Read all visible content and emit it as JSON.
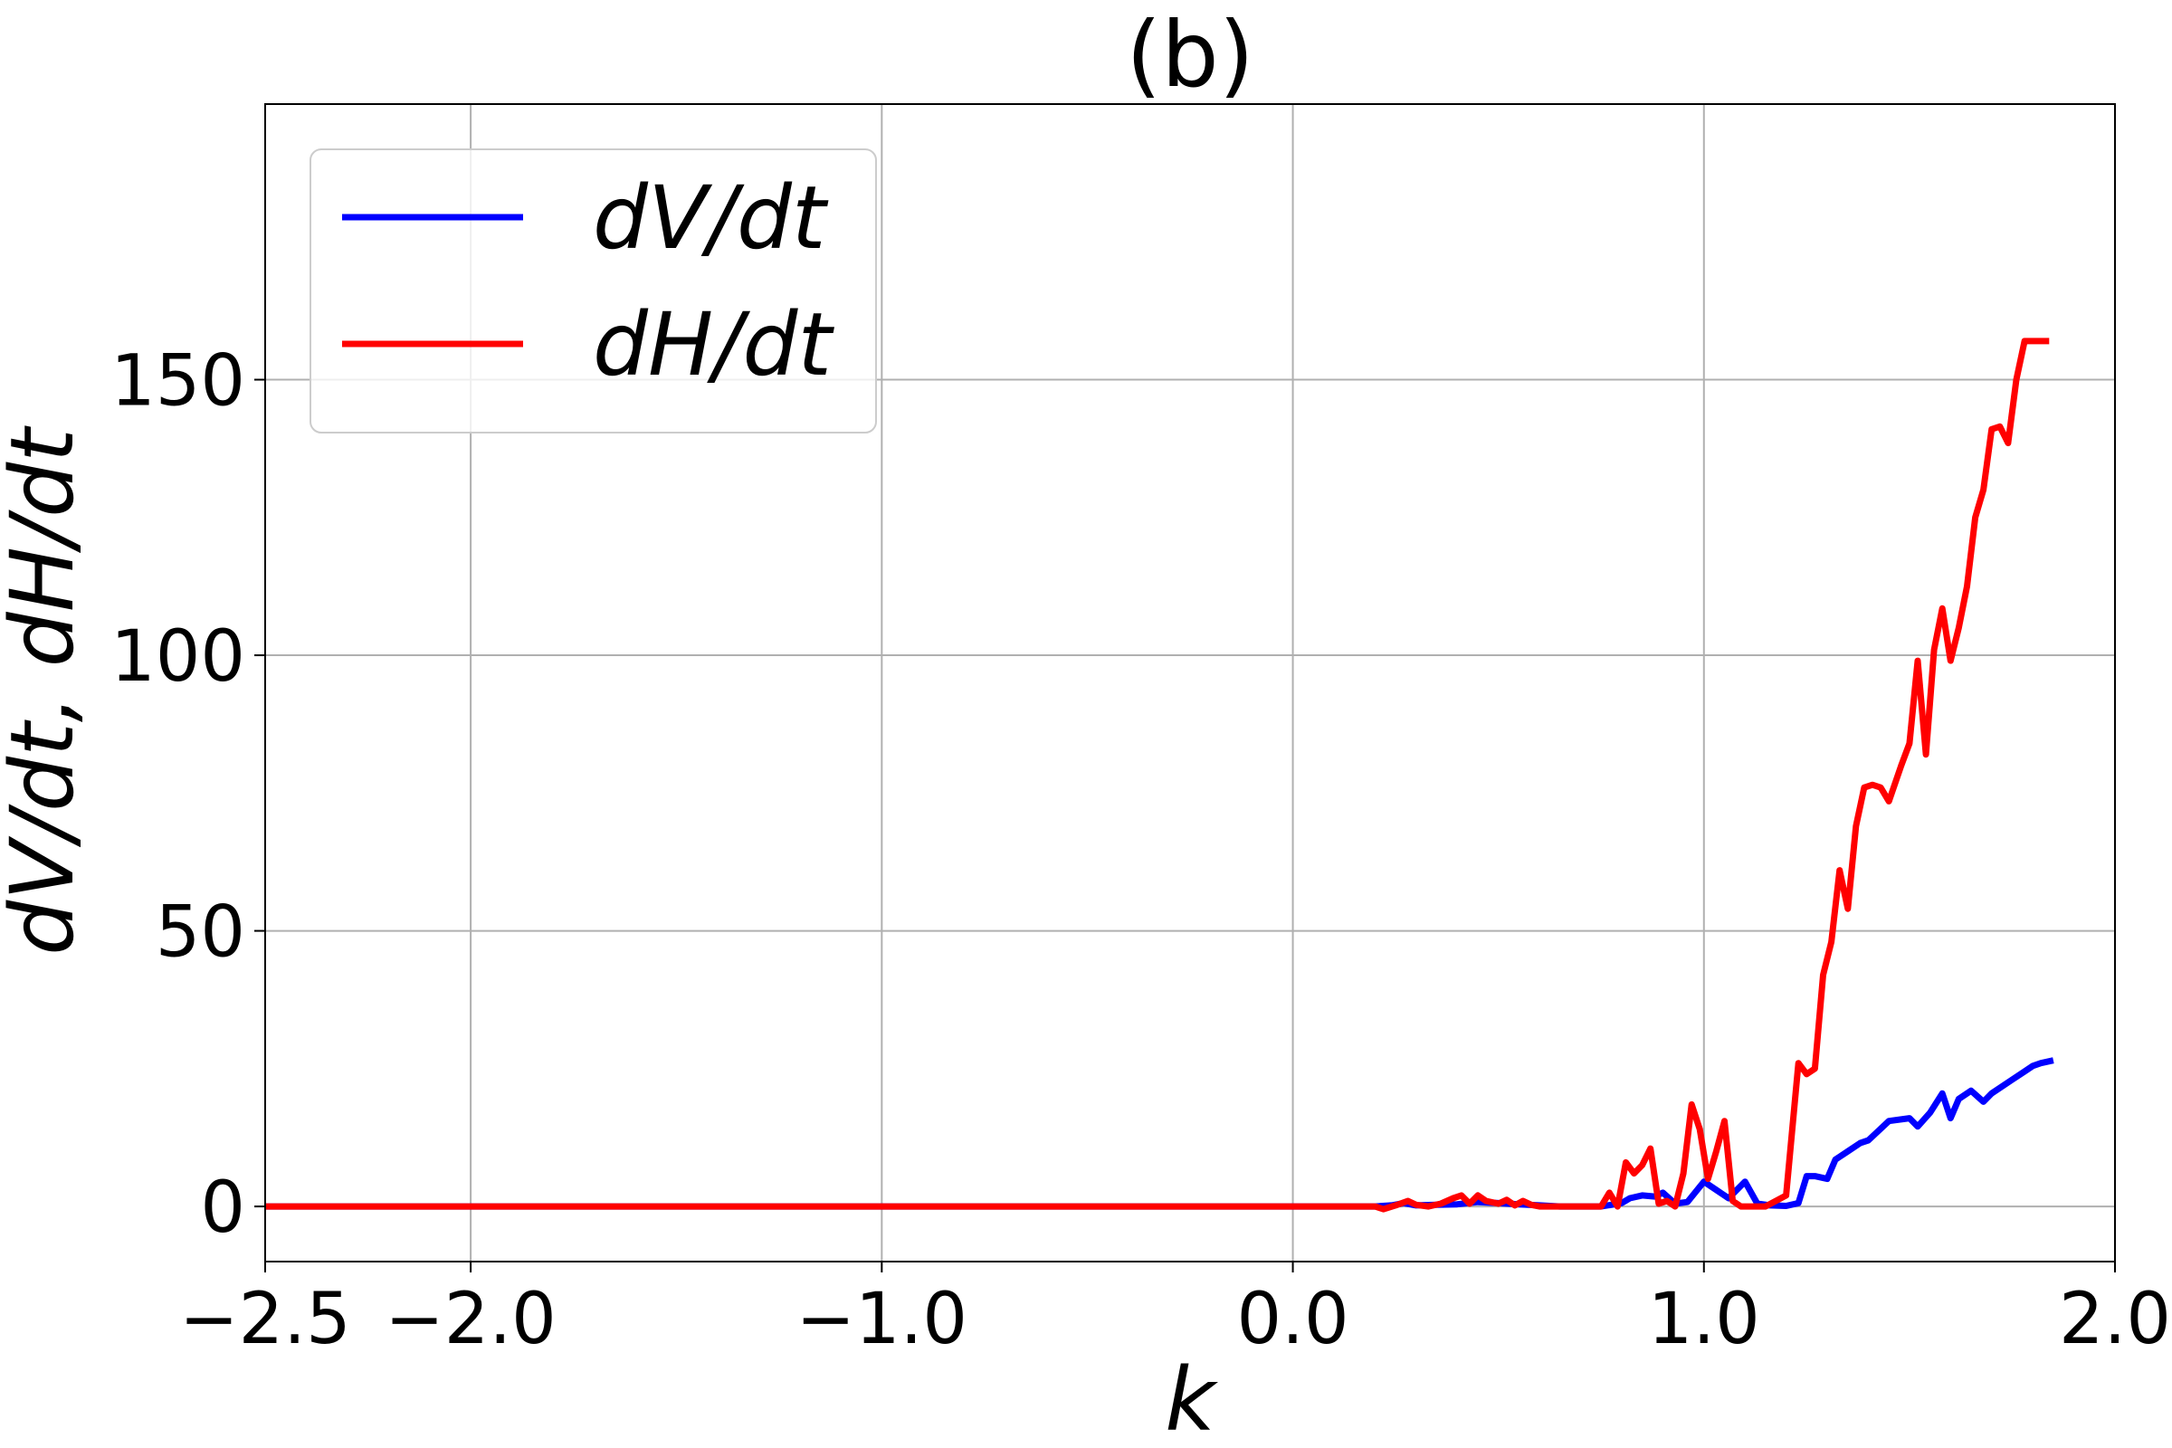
{
  "chart_data": {
    "type": "line",
    "title": "(b)",
    "xlabel": "k",
    "ylabel": "dV/dt, dH/dt",
    "xlim": [
      -2.5,
      2.0
    ],
    "ylim": [
      -10,
      200
    ],
    "xticks": [
      -2.5,
      -2.0,
      -1.0,
      0.0,
      1.0,
      2.0
    ],
    "xtick_labels": [
      "−2.5",
      "−2.0",
      "−1.0",
      "0.0",
      "1.0",
      "2.0"
    ],
    "yticks": [
      0,
      50,
      100,
      150
    ],
    "ytick_labels": [
      "0",
      "50",
      "100",
      "150"
    ],
    "grid": true,
    "legend_position": "top-left",
    "series": [
      {
        "name": "dV/dt",
        "color": "#0000ff",
        "x": [
          -2.5,
          0.0,
          0.2,
          0.24,
          0.27,
          0.3,
          0.35,
          0.4,
          0.45,
          0.5,
          0.55,
          0.6,
          0.65,
          0.7,
          0.75,
          0.8,
          0.82,
          0.85,
          0.88,
          0.9,
          0.93,
          0.96,
          1.0,
          1.03,
          1.06,
          1.1,
          1.13,
          1.16,
          1.2,
          1.23,
          1.25,
          1.27,
          1.3,
          1.32,
          1.35,
          1.38,
          1.4,
          1.45,
          1.5,
          1.52,
          1.55,
          1.58,
          1.6,
          1.62,
          1.65,
          1.68,
          1.7,
          1.75,
          1.78,
          1.8,
          1.82,
          1.85
        ],
        "y": [
          0,
          0,
          0,
          0.2,
          0.6,
          0.2,
          0.3,
          0.4,
          0.8,
          0.6,
          0.4,
          0.2,
          0,
          0,
          0,
          0.6,
          1.5,
          2.0,
          1.8,
          2.5,
          0.5,
          0.8,
          4.5,
          3.0,
          1.5,
          4.5,
          0.5,
          0.2,
          0.1,
          0.6,
          5.5,
          5.5,
          5.0,
          8.5,
          10.0,
          11.5,
          12.0,
          15.5,
          16.0,
          14.5,
          17.0,
          20.5,
          16.0,
          19.5,
          21.0,
          19.0,
          20.5,
          23.0,
          24.5,
          25.5,
          26.0,
          26.5
        ]
      },
      {
        "name": "dH/dt",
        "color": "#ff0000",
        "x": [
          -2.5,
          0.0,
          0.2,
          0.22,
          0.25,
          0.28,
          0.3,
          0.33,
          0.36,
          0.39,
          0.41,
          0.43,
          0.45,
          0.47,
          0.5,
          0.52,
          0.54,
          0.56,
          0.58,
          0.6,
          0.65,
          0.7,
          0.75,
          0.77,
          0.79,
          0.81,
          0.83,
          0.85,
          0.87,
          0.89,
          0.91,
          0.93,
          0.95,
          0.97,
          0.99,
          1.01,
          1.03,
          1.05,
          1.07,
          1.09,
          1.11,
          1.13,
          1.15,
          1.2,
          1.23,
          1.25,
          1.27,
          1.29,
          1.31,
          1.33,
          1.35,
          1.37,
          1.39,
          1.41,
          1.43,
          1.45,
          1.48,
          1.5,
          1.52,
          1.54,
          1.56,
          1.58,
          1.6,
          1.62,
          1.64,
          1.66,
          1.68,
          1.7,
          1.72,
          1.74,
          1.76,
          1.78,
          1.8,
          1.82,
          1.84
        ],
        "y": [
          0,
          0,
          0,
          -0.5,
          0.2,
          1.0,
          0.3,
          0.0,
          0.5,
          1.5,
          2.0,
          0.5,
          2.0,
          1.0,
          0.5,
          1.2,
          0.2,
          1.0,
          0.3,
          0.0,
          0.0,
          0.0,
          0.0,
          2.5,
          0.0,
          8.0,
          6.0,
          7.5,
          10.5,
          0.5,
          1.0,
          0.0,
          6.0,
          18.5,
          14.0,
          5.0,
          10.0,
          15.5,
          1.0,
          0.0,
          0.0,
          0.0,
          0.0,
          2.0,
          26.0,
          24.0,
          25.0,
          42.0,
          48.0,
          61.0,
          54.0,
          69.0,
          76.0,
          76.5,
          76.0,
          73.5,
          80.0,
          84.0,
          99.0,
          82.0,
          101.0,
          108.5,
          99.0,
          105.0,
          112.5,
          125.0,
          130.0,
          141.0,
          141.5,
          138.5,
          150.0,
          157.0,
          157.0,
          157.0,
          157.0
        ]
      }
    ]
  }
}
